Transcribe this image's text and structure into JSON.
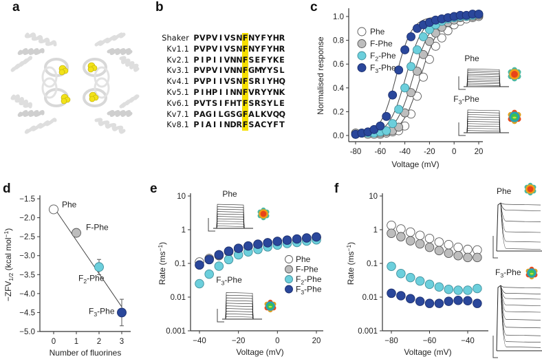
{
  "panels": {
    "a": {
      "letter": "a"
    },
    "b": {
      "letter": "b"
    },
    "c": {
      "letter": "c"
    },
    "d": {
      "letter": "d"
    },
    "e": {
      "letter": "e"
    },
    "f": {
      "letter": "f"
    }
  },
  "colors": {
    "Phe": "#ffffff",
    "F-Phe": "#bdbdbd",
    "F2-Phe": "#6ccfdc",
    "F3-Phe": "#2a479b",
    "highlight": "#f6e000",
    "helix": "#d9d9d9",
    "ligand": "#f2e21a"
  },
  "alignment": {
    "highlight_index": 9,
    "rows": [
      {
        "name": "Shaker",
        "seq": "PVPVIVSNFNYFYHR"
      },
      {
        "name": "Kv1.1",
        "seq": "PVPVIVSNFNYFYHR"
      },
      {
        "name": "Kv2.1",
        "seq": "PIPIIVNNFSEFYKE"
      },
      {
        "name": "Kv3.1",
        "seq": "PVPVIVNNFGMYYSL"
      },
      {
        "name": "Kv4.1",
        "seq": "PVPIIVSNFSRIYHQ"
      },
      {
        "name": "Kv5.1",
        "seq": "PIHPIINNFVRYYNK"
      },
      {
        "name": "Kv6.1",
        "seq": "PVTSIFHTFSRSYLE"
      },
      {
        "name": "Kv7.1",
        "seq": "PAGILGSGFALKVQQ"
      },
      {
        "name": "Kv8.1",
        "seq": "PIAIINDRFSACYFT"
      }
    ]
  },
  "chart_data": [
    {
      "id": "c",
      "type": "scatter",
      "title": "",
      "xlabel": "Voltage (mV)",
      "ylabel": "Normalised response",
      "xlim": [
        -80,
        20
      ],
      "ylim": [
        0.0,
        1.0
      ],
      "xticks": [
        "-80",
        "-60",
        "-40",
        "-20",
        "0",
        "20"
      ],
      "xtick_values": [
        -80,
        -60,
        -40,
        -20,
        0,
        20
      ],
      "yticks": [
        "0.0",
        "0.2",
        "0.4",
        "0.6",
        "0.8",
        "1.0"
      ],
      "ytick_values": [
        0,
        0.2,
        0.4,
        0.6,
        0.8,
        1.0
      ],
      "legend": {
        "placement": "top-left",
        "entries": [
          "Phe",
          "F-Phe",
          "F2-Phe",
          "F3-Phe"
        ]
      },
      "annotations": [
        "Phe",
        "F3-Phe"
      ],
      "fits": [
        {
          "name": "Phe",
          "v_half": -27,
          "slope": 7.5
        },
        {
          "name": "F-Phe",
          "v_half": -33,
          "slope": 7.2
        },
        {
          "name": "F2-Phe",
          "v_half": -39,
          "slope": 6.8
        },
        {
          "name": "F3-Phe",
          "v_half": -47,
          "slope": 6.3
        }
      ],
      "x": [
        -80,
        -75,
        -70,
        -65,
        -60,
        -55,
        -50,
        -45,
        -40,
        -35,
        -30,
        -25,
        -20,
        -15,
        -10,
        -5,
        0,
        5,
        10,
        15,
        20
      ],
      "series": [
        {
          "name": "Phe",
          "values": [
            0.02,
            0.02,
            0.01,
            0.01,
            0.01,
            0.02,
            0.03,
            0.04,
            0.08,
            0.18,
            0.33,
            0.49,
            0.64,
            0.75,
            0.82,
            0.88,
            0.93,
            0.96,
            0.98,
            0.99,
            1.0
          ]
        },
        {
          "name": "F-Phe",
          "values": [
            0.02,
            0.02,
            0.02,
            0.02,
            0.02,
            0.03,
            0.04,
            0.07,
            0.19,
            0.36,
            0.54,
            0.68,
            0.79,
            0.86,
            0.91,
            0.95,
            0.97,
            0.99,
            1.0,
            1.0,
            1.01
          ]
        },
        {
          "name": "F2-Phe",
          "values": [
            0.01,
            0.02,
            0.02,
            0.02,
            0.03,
            0.04,
            0.1,
            0.22,
            0.4,
            0.58,
            0.72,
            0.83,
            0.89,
            0.93,
            0.96,
            0.98,
            0.99,
            1.0,
            1.0,
            1.01,
            1.02
          ]
        },
        {
          "name": "F3-Phe",
          "values": [
            0.01,
            0.02,
            0.03,
            0.05,
            0.08,
            0.16,
            0.34,
            0.55,
            0.72,
            0.83,
            0.9,
            0.93,
            0.95,
            0.97,
            0.98,
            0.99,
            1.0,
            1.01,
            1.01,
            1.02,
            1.02
          ]
        }
      ]
    },
    {
      "id": "d",
      "type": "scatter",
      "xlabel": "Number of fluorines",
      "ylabel": "-ZFV1/2 (kcal mol-1)",
      "xlim": [
        -0.4,
        3.4
      ],
      "ylim": [
        -5.0,
        -1.5
      ],
      "xticks": [
        "0",
        "1",
        "2",
        "3"
      ],
      "xtick_values": [
        0,
        1,
        2,
        3
      ],
      "yticks": [
        "-1.5",
        "-2.0",
        "-2.5",
        "-3.0",
        "-3.5",
        "-4.0",
        "-4.5",
        "-5.0"
      ],
      "ytick_values": [
        -1.5,
        -2.0,
        -2.5,
        -3.0,
        -3.5,
        -4.0,
        -4.5,
        -5.0
      ],
      "fit_line": {
        "x": [
          0,
          3
        ],
        "y": [
          -1.72,
          -4.35
        ]
      },
      "points": [
        {
          "name": "Phe",
          "x": 0,
          "y": -1.78,
          "err": 0.1
        },
        {
          "name": "F-Phe",
          "x": 1,
          "y": -2.4,
          "err": 0.06
        },
        {
          "name": "F2-Phe",
          "x": 2,
          "y": -3.3,
          "err": 0.2
        },
        {
          "name": "F3-Phe",
          "x": 3,
          "y": -4.5,
          "err": 0.35
        }
      ]
    },
    {
      "id": "e",
      "type": "scatter",
      "xlabel": "Voltage (mV)",
      "ylabel": "Rate (ms-1)",
      "yscale": "log",
      "xlim": [
        -43,
        22
      ],
      "ylim": [
        0.001,
        10
      ],
      "xticks": [
        "-40",
        "-20",
        "0",
        "20"
      ],
      "xtick_values": [
        -40,
        -20,
        0,
        20
      ],
      "yticks": [
        "0.001",
        "0.01",
        "0.1",
        "1",
        "10"
      ],
      "ytick_values": [
        0.001,
        0.01,
        0.1,
        1,
        10
      ],
      "legend": {
        "placement": "center-right",
        "entries": [
          "Phe",
          "F-Phe",
          "F2-Phe",
          "F3-Phe"
        ]
      },
      "annotations": [
        "Phe",
        "F3-Phe"
      ],
      "x": [
        -40,
        -35,
        -30,
        -25,
        -20,
        -15,
        -10,
        -5,
        0,
        5,
        10,
        15,
        20
      ],
      "series": [
        {
          "name": "Phe",
          "values": [
            0.11,
            0.14,
            0.18,
            0.23,
            0.28,
            0.32,
            0.37,
            0.41,
            0.45,
            0.48,
            0.52,
            0.56,
            0.6
          ]
        },
        {
          "name": "F-Phe",
          "values": [
            0.09,
            0.13,
            0.17,
            0.22,
            0.27,
            0.32,
            0.36,
            0.4,
            0.44,
            0.48,
            0.51,
            0.55,
            0.58
          ]
        },
        {
          "name": "F2-Phe",
          "values": [
            0.025,
            0.048,
            0.083,
            0.13,
            0.18,
            0.22,
            0.26,
            0.31,
            0.35,
            0.39,
            0.42,
            0.46,
            0.5
          ]
        },
        {
          "name": "F3-Phe",
          "values": [
            0.09,
            0.13,
            0.18,
            0.23,
            0.28,
            0.33,
            0.37,
            0.41,
            0.45,
            0.49,
            0.53,
            0.57,
            0.61
          ]
        }
      ]
    },
    {
      "id": "f",
      "type": "scatter",
      "xlabel": "Voltage (mV)",
      "ylabel": "Rate (ms-1)",
      "yscale": "log",
      "xlim": [
        -85,
        -33
      ],
      "ylim": [
        0.001,
        10
      ],
      "xticks": [
        "-80",
        "-60",
        "-40"
      ],
      "xtick_values": [
        -80,
        -60,
        -40
      ],
      "yticks": [
        "0.001",
        "0.01",
        "0.1",
        "1",
        "10"
      ],
      "ytick_values": [
        0.001,
        0.01,
        0.1,
        1,
        10
      ],
      "annotations": [
        "Phe",
        "F3-Phe"
      ],
      "x": [
        -80,
        -75,
        -70,
        -65,
        -60,
        -55,
        -50,
        -45,
        -40,
        -35
      ],
      "series": [
        {
          "name": "Phe",
          "values": [
            1.35,
            1.05,
            0.85,
            0.68,
            0.55,
            0.43,
            0.36,
            0.3,
            0.26,
            0.25
          ]
        },
        {
          "name": "F-Phe",
          "values": [
            0.78,
            0.62,
            0.47,
            0.38,
            0.3,
            0.24,
            0.2,
            0.17,
            0.15,
            0.15
          ]
        },
        {
          "name": "F2-Phe",
          "values": [
            0.082,
            0.05,
            0.038,
            0.03,
            0.024,
            0.02,
            0.017,
            0.016,
            0.016,
            0.018
          ]
        },
        {
          "name": "F3-Phe",
          "values": [
            0.013,
            0.011,
            0.009,
            0.0075,
            0.0065,
            0.0065,
            0.0075,
            0.008,
            0.0078,
            0.0065
          ]
        }
      ]
    }
  ]
}
